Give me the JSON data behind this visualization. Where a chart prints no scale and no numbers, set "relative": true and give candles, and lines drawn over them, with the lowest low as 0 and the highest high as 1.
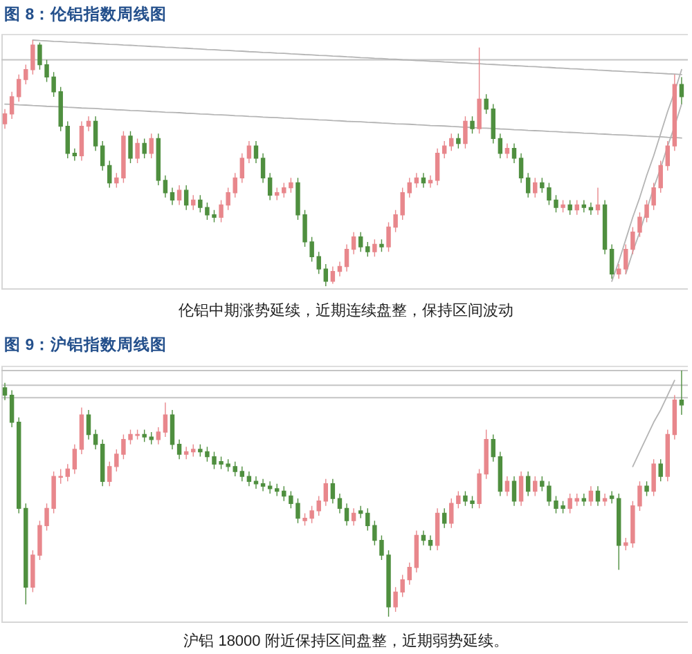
{
  "chart_data": [
    {
      "type": "candlestick",
      "title": "图 8：伦铝指数周线图",
      "annotations": [
        "伦铝中期涨势延续，近期连续盘整，保持区间波动"
      ],
      "relative": true,
      "categories": [
        null,
        null,
        null,
        null,
        null,
        null,
        null,
        null,
        null,
        null,
        null,
        null,
        null,
        null,
        null,
        null,
        null,
        null,
        null,
        null,
        null,
        null,
        null,
        null,
        null,
        null,
        null,
        null,
        null,
        null,
        null,
        null,
        null,
        null,
        null,
        null,
        null,
        null,
        null,
        null,
        null,
        null,
        null,
        null,
        null,
        null,
        null,
        null,
        null,
        null,
        null,
        null,
        null,
        null,
        null,
        null,
        null,
        null,
        null,
        null,
        null,
        null,
        null,
        null,
        null,
        null,
        null,
        null,
        null,
        null,
        null,
        null,
        null,
        null,
        null,
        null,
        null,
        null,
        null,
        null,
        null,
        null,
        null,
        null,
        null,
        null,
        null,
        null,
        null,
        null,
        null,
        null,
        null,
        null,
        null,
        null,
        null,
        null
      ],
      "ohlc": [
        [
          0.66,
          0.72,
          0.64,
          0.7
        ],
        [
          0.7,
          0.79,
          0.68,
          0.77
        ],
        [
          0.77,
          0.86,
          0.75,
          0.84
        ],
        [
          0.84,
          0.9,
          0.82,
          0.88
        ],
        [
          0.88,
          1.0,
          0.86,
          0.98
        ],
        [
          0.98,
          0.99,
          0.88,
          0.9
        ],
        [
          0.9,
          0.92,
          0.83,
          0.85
        ],
        [
          0.85,
          0.87,
          0.77,
          0.79
        ],
        [
          0.79,
          0.81,
          0.63,
          0.65
        ],
        [
          0.65,
          0.67,
          0.52,
          0.54
        ],
        [
          0.54,
          0.56,
          0.51,
          0.53
        ],
        [
          0.53,
          0.67,
          0.51,
          0.65
        ],
        [
          0.65,
          0.69,
          0.63,
          0.67
        ],
        [
          0.67,
          0.69,
          0.55,
          0.57
        ],
        [
          0.57,
          0.59,
          0.47,
          0.49
        ],
        [
          0.49,
          0.51,
          0.4,
          0.42
        ],
        [
          0.42,
          0.46,
          0.4,
          0.44
        ],
        [
          0.44,
          0.63,
          0.42,
          0.61
        ],
        [
          0.61,
          0.63,
          0.5,
          0.52
        ],
        [
          0.52,
          0.6,
          0.5,
          0.58
        ],
        [
          0.58,
          0.6,
          0.52,
          0.54
        ],
        [
          0.54,
          0.62,
          0.52,
          0.6
        ],
        [
          0.6,
          0.62,
          0.41,
          0.43
        ],
        [
          0.43,
          0.45,
          0.36,
          0.38
        ],
        [
          0.38,
          0.4,
          0.33,
          0.35
        ],
        [
          0.35,
          0.41,
          0.33,
          0.39
        ],
        [
          0.39,
          0.41,
          0.31,
          0.33
        ],
        [
          0.33,
          0.37,
          0.31,
          0.35
        ],
        [
          0.35,
          0.37,
          0.3,
          0.32
        ],
        [
          0.32,
          0.34,
          0.27,
          0.29
        ],
        [
          0.29,
          0.31,
          0.26,
          0.28
        ],
        [
          0.28,
          0.35,
          0.26,
          0.33
        ],
        [
          0.33,
          0.4,
          0.31,
          0.38
        ],
        [
          0.38,
          0.46,
          0.36,
          0.44
        ],
        [
          0.44,
          0.54,
          0.42,
          0.52
        ],
        [
          0.52,
          0.59,
          0.5,
          0.57
        ],
        [
          0.57,
          0.59,
          0.5,
          0.52
        ],
        [
          0.52,
          0.54,
          0.42,
          0.44
        ],
        [
          0.44,
          0.46,
          0.35,
          0.37
        ],
        [
          0.37,
          0.4,
          0.35,
          0.38
        ],
        [
          0.38,
          0.42,
          0.36,
          0.4
        ],
        [
          0.4,
          0.44,
          0.38,
          0.42
        ],
        [
          0.42,
          0.44,
          0.27,
          0.29
        ],
        [
          0.29,
          0.31,
          0.16,
          0.18
        ],
        [
          0.18,
          0.2,
          0.1,
          0.12
        ],
        [
          0.12,
          0.14,
          0.05,
          0.07
        ],
        [
          0.07,
          0.09,
          0.0,
          0.02
        ],
        [
          0.02,
          0.08,
          0.01,
          0.06
        ],
        [
          0.06,
          0.1,
          0.04,
          0.08
        ],
        [
          0.08,
          0.17,
          0.06,
          0.15
        ],
        [
          0.15,
          0.22,
          0.13,
          0.2
        ],
        [
          0.2,
          0.22,
          0.14,
          0.16
        ],
        [
          0.16,
          0.18,
          0.12,
          0.14
        ],
        [
          0.14,
          0.19,
          0.12,
          0.17
        ],
        [
          0.17,
          0.19,
          0.14,
          0.16
        ],
        [
          0.16,
          0.26,
          0.14,
          0.24
        ],
        [
          0.24,
          0.31,
          0.22,
          0.29
        ],
        [
          0.29,
          0.4,
          0.27,
          0.38
        ],
        [
          0.38,
          0.44,
          0.36,
          0.42
        ],
        [
          0.42,
          0.46,
          0.4,
          0.44
        ],
        [
          0.44,
          0.46,
          0.4,
          0.42
        ],
        [
          0.42,
          0.45,
          0.4,
          0.43
        ],
        [
          0.43,
          0.56,
          0.41,
          0.54
        ],
        [
          0.54,
          0.59,
          0.52,
          0.57
        ],
        [
          0.57,
          0.62,
          0.55,
          0.6
        ],
        [
          0.6,
          0.62,
          0.56,
          0.58
        ],
        [
          0.58,
          0.69,
          0.56,
          0.67
        ],
        [
          0.67,
          0.69,
          0.62,
          0.64
        ],
        [
          0.64,
          0.97,
          0.62,
          0.76
        ],
        [
          0.76,
          0.78,
          0.7,
          0.72
        ],
        [
          0.72,
          0.74,
          0.58,
          0.6
        ],
        [
          0.6,
          0.62,
          0.52,
          0.54
        ],
        [
          0.54,
          0.58,
          0.52,
          0.56
        ],
        [
          0.56,
          0.58,
          0.5,
          0.52
        ],
        [
          0.52,
          0.54,
          0.42,
          0.44
        ],
        [
          0.44,
          0.46,
          0.36,
          0.38
        ],
        [
          0.38,
          0.44,
          0.36,
          0.42
        ],
        [
          0.42,
          0.44,
          0.38,
          0.4
        ],
        [
          0.4,
          0.42,
          0.33,
          0.35
        ],
        [
          0.35,
          0.37,
          0.3,
          0.32
        ],
        [
          0.32,
          0.35,
          0.3,
          0.33
        ],
        [
          0.33,
          0.35,
          0.29,
          0.31
        ],
        [
          0.31,
          0.35,
          0.29,
          0.33
        ],
        [
          0.33,
          0.35,
          0.3,
          0.32
        ],
        [
          0.32,
          0.34,
          0.29,
          0.31
        ],
        [
          0.31,
          0.4,
          0.29,
          0.33
        ],
        [
          0.33,
          0.35,
          0.13,
          0.15
        ],
        [
          0.15,
          0.17,
          0.03,
          0.05
        ],
        [
          0.05,
          0.09,
          0.03,
          0.07
        ],
        [
          0.07,
          0.17,
          0.05,
          0.15
        ],
        [
          0.15,
          0.24,
          0.13,
          0.22
        ],
        [
          0.22,
          0.3,
          0.2,
          0.28
        ],
        [
          0.28,
          0.35,
          0.26,
          0.33
        ],
        [
          0.33,
          0.42,
          0.31,
          0.4
        ],
        [
          0.4,
          0.51,
          0.38,
          0.49
        ],
        [
          0.49,
          0.59,
          0.47,
          0.57
        ],
        [
          0.57,
          0.86,
          0.55,
          0.82
        ],
        [
          0.82,
          0.85,
          0.74,
          0.77
        ]
      ],
      "colors": [
        "#e8878c",
        "#e8878c",
        "#e8878c",
        "#e8878c",
        "#e8878c",
        "#4f8f3f",
        "#4f8f3f",
        "#4f8f3f",
        "#4f8f3f",
        "#4f8f3f",
        "#4f8f3f",
        "#e8878c",
        "#e8878c",
        "#4f8f3f",
        "#4f8f3f",
        "#4f8f3f",
        "#e8878c",
        "#e8878c",
        "#4f8f3f",
        "#e8878c",
        "#4f8f3f",
        "#e8878c",
        "#4f8f3f",
        "#4f8f3f",
        "#4f8f3f",
        "#e8878c",
        "#4f8f3f",
        "#e8878c",
        "#4f8f3f",
        "#4f8f3f",
        "#4f8f3f",
        "#e8878c",
        "#e8878c",
        "#e8878c",
        "#e8878c",
        "#e8878c",
        "#4f8f3f",
        "#4f8f3f",
        "#4f8f3f",
        "#e8878c",
        "#e8878c",
        "#e8878c",
        "#4f8f3f",
        "#4f8f3f",
        "#4f8f3f",
        "#4f8f3f",
        "#4f8f3f",
        "#e8878c",
        "#e8878c",
        "#e8878c",
        "#e8878c",
        "#4f8f3f",
        "#4f8f3f",
        "#e8878c",
        "#4f8f3f",
        "#e8878c",
        "#e8878c",
        "#e8878c",
        "#e8878c",
        "#e8878c",
        "#4f8f3f",
        "#e8878c",
        "#e8878c",
        "#e8878c",
        "#e8878c",
        "#4f8f3f",
        "#e8878c",
        "#4f8f3f",
        "#e8878c",
        "#4f8f3f",
        "#4f8f3f",
        "#4f8f3f",
        "#e8878c",
        "#4f8f3f",
        "#4f8f3f",
        "#4f8f3f",
        "#e8878c",
        "#4f8f3f",
        "#4f8f3f",
        "#4f8f3f",
        "#e8878c",
        "#4f8f3f",
        "#e8878c",
        "#4f8f3f",
        "#4f8f3f",
        "#e8878c",
        "#4f8f3f",
        "#4f8f3f",
        "#e8878c",
        "#e8878c",
        "#e8878c",
        "#e8878c",
        "#e8878c",
        "#e8878c",
        "#e8878c",
        "#e8878c",
        "#e8878c",
        "#4f8f3f"
      ],
      "ref_lines": [
        {
          "axis": "y",
          "value": 0.92,
          "color": "#c4c4c4"
        }
      ],
      "series": [
        {
          "type": "line",
          "color": "#b4b4b4",
          "values": [
            null,
            null,
            null,
            null,
            1.0,
            0.998,
            0.997,
            0.995,
            0.994,
            0.992,
            0.991,
            0.989,
            0.988,
            0.986,
            0.985,
            0.983,
            0.982,
            0.98,
            0.979,
            0.977,
            0.976,
            0.974,
            0.973,
            0.971,
            0.97,
            0.968,
            0.967,
            0.965,
            0.964,
            0.962,
            0.961,
            0.959,
            0.958,
            0.956,
            0.955,
            0.953,
            0.952,
            0.95,
            0.949,
            0.947,
            0.946,
            0.944,
            0.943,
            0.941,
            0.94,
            0.938,
            0.937,
            0.935,
            0.934,
            0.932,
            0.931,
            0.929,
            0.928,
            0.926,
            0.925,
            0.923,
            0.922,
            0.92,
            0.919,
            0.917,
            0.916,
            0.914,
            0.913,
            0.911,
            0.91,
            0.908,
            0.907,
            0.905,
            0.904,
            0.902,
            0.901,
            0.899,
            0.898,
            0.896,
            0.895,
            0.893,
            0.892,
            0.89,
            0.889,
            0.887,
            0.886,
            0.884,
            0.883,
            0.881,
            0.88,
            0.878,
            0.877,
            0.875,
            0.874,
            0.872,
            0.871,
            0.869,
            0.868,
            0.866,
            0.865,
            0.863,
            0.862,
            0.86
          ]
        },
        {
          "type": "line",
          "color": "#b4b4b4",
          "values": [
            0.74,
            0.739,
            0.737,
            0.736,
            0.734,
            0.733,
            0.731,
            0.73,
            0.729,
            0.727,
            0.726,
            0.724,
            0.723,
            0.722,
            0.72,
            0.719,
            0.717,
            0.716,
            0.714,
            0.713,
            0.712,
            0.71,
            0.709,
            0.707,
            0.706,
            0.705,
            0.703,
            0.702,
            0.7,
            0.699,
            0.697,
            0.696,
            0.695,
            0.693,
            0.692,
            0.69,
            0.689,
            0.687,
            0.686,
            0.685,
            0.683,
            0.682,
            0.68,
            0.679,
            0.678,
            0.676,
            0.675,
            0.673,
            0.672,
            0.67,
            0.669,
            0.668,
            0.666,
            0.665,
            0.663,
            0.662,
            0.66,
            0.659,
            0.658,
            0.656,
            0.655,
            0.653,
            0.652,
            0.651,
            0.649,
            0.648,
            0.646,
            0.645,
            0.643,
            0.642,
            0.641,
            0.639,
            0.638,
            0.636,
            0.635,
            0.633,
            0.632,
            0.631,
            0.629,
            0.628,
            0.626,
            0.625,
            0.624,
            0.622,
            0.621,
            0.619,
            0.618,
            0.616,
            0.615,
            0.614,
            0.612,
            0.611,
            0.609,
            0.608,
            0.607,
            0.605,
            0.604,
            0.602
          ]
        },
        {
          "type": "line",
          "color": "#b4b4b4",
          "values": [
            null,
            null,
            null,
            null,
            null,
            null,
            null,
            null,
            null,
            null,
            null,
            null,
            null,
            null,
            null,
            null,
            null,
            null,
            null,
            null,
            null,
            null,
            null,
            null,
            null,
            null,
            null,
            null,
            null,
            null,
            null,
            null,
            null,
            null,
            null,
            null,
            null,
            null,
            null,
            null,
            null,
            null,
            null,
            null,
            null,
            null,
            null,
            null,
            null,
            null,
            null,
            null,
            null,
            null,
            null,
            null,
            null,
            null,
            null,
            null,
            null,
            null,
            null,
            null,
            null,
            null,
            null,
            null,
            null,
            null,
            null,
            null,
            null,
            null,
            null,
            null,
            null,
            null,
            null,
            null,
            null,
            null,
            null,
            null,
            null,
            null,
            null,
            0.02,
            0.1,
            0.19,
            0.28,
            0.36,
            0.45,
            0.53,
            0.62,
            0.71,
            0.79,
            0.88
          ]
        },
        {
          "type": "line",
          "color": "#b4b4b4",
          "values": [
            null,
            null,
            null,
            null,
            null,
            null,
            null,
            null,
            null,
            null,
            null,
            null,
            null,
            null,
            null,
            null,
            null,
            null,
            null,
            null,
            null,
            null,
            null,
            null,
            null,
            null,
            null,
            null,
            null,
            null,
            null,
            null,
            null,
            null,
            null,
            null,
            null,
            null,
            null,
            null,
            null,
            null,
            null,
            null,
            null,
            null,
            null,
            null,
            null,
            null,
            null,
            null,
            null,
            null,
            null,
            null,
            null,
            null,
            null,
            null,
            null,
            null,
            null,
            null,
            null,
            null,
            null,
            null,
            null,
            null,
            null,
            null,
            null,
            null,
            null,
            null,
            null,
            null,
            null,
            null,
            null,
            null,
            null,
            null,
            null,
            null,
            null,
            null,
            null,
            0.05,
            0.14,
            0.22,
            0.31,
            0.4,
            0.48,
            0.57,
            0.65,
            0.74
          ]
        }
      ]
    },
    {
      "type": "candlestick",
      "title": "图 9：沪铝指数周线图",
      "annotations": [
        "沪铝 18000 附近保持区间盘整，近期弱势延续。"
      ],
      "relative": true,
      "categories": [
        null,
        null,
        null,
        null,
        null,
        null,
        null,
        null,
        null,
        null,
        null,
        null,
        null,
        null,
        null,
        null,
        null,
        null,
        null,
        null,
        null,
        null,
        null,
        null,
        null,
        null,
        null,
        null,
        null,
        null,
        null,
        null,
        null,
        null,
        null,
        null,
        null,
        null,
        null,
        null,
        null,
        null,
        null,
        null,
        null,
        null,
        null,
        null,
        null,
        null,
        null,
        null,
        null,
        null,
        null,
        null,
        null,
        null,
        null,
        null,
        null,
        null,
        null,
        null,
        null,
        null,
        null,
        null,
        null,
        null,
        null,
        null,
        null,
        null,
        null,
        null,
        null,
        null,
        null,
        null,
        null,
        null,
        null,
        null,
        null,
        null,
        null,
        null,
        null,
        null,
        null,
        null,
        null,
        null,
        null,
        null,
        null,
        null
      ],
      "ohlc": [
        [
          0.93,
          0.95,
          0.88,
          0.9
        ],
        [
          0.9,
          0.92,
          0.77,
          0.79
        ],
        [
          0.79,
          0.81,
          0.42,
          0.44
        ],
        [
          0.44,
          0.46,
          0.05,
          0.12
        ],
        [
          0.12,
          0.27,
          0.1,
          0.25
        ],
        [
          0.25,
          0.39,
          0.23,
          0.37
        ],
        [
          0.37,
          0.46,
          0.35,
          0.44
        ],
        [
          0.44,
          0.59,
          0.42,
          0.57
        ],
        [
          0.57,
          0.6,
          0.54,
          0.57
        ],
        [
          0.57,
          0.62,
          0.55,
          0.6
        ],
        [
          0.6,
          0.7,
          0.58,
          0.68
        ],
        [
          0.68,
          0.85,
          0.66,
          0.82
        ],
        [
          0.82,
          0.84,
          0.72,
          0.74
        ],
        [
          0.74,
          0.76,
          0.68,
          0.7
        ],
        [
          0.7,
          0.72,
          0.53,
          0.55
        ],
        [
          0.55,
          0.63,
          0.53,
          0.61
        ],
        [
          0.61,
          0.68,
          0.59,
          0.66
        ],
        [
          0.66,
          0.74,
          0.64,
          0.72
        ],
        [
          0.72,
          0.76,
          0.7,
          0.74
        ],
        [
          0.74,
          0.76,
          0.72,
          0.74
        ],
        [
          0.74,
          0.76,
          0.71,
          0.73
        ],
        [
          0.73,
          0.75,
          0.7,
          0.72
        ],
        [
          0.72,
          0.77,
          0.7,
          0.75
        ],
        [
          0.75,
          0.87,
          0.73,
          0.82
        ],
        [
          0.82,
          0.84,
          0.68,
          0.7
        ],
        [
          0.7,
          0.72,
          0.64,
          0.66
        ],
        [
          0.66,
          0.69,
          0.64,
          0.67
        ],
        [
          0.67,
          0.7,
          0.65,
          0.68
        ],
        [
          0.68,
          0.7,
          0.65,
          0.67
        ],
        [
          0.67,
          0.69,
          0.63,
          0.65
        ],
        [
          0.65,
          0.67,
          0.6,
          0.62
        ],
        [
          0.63,
          0.65,
          0.6,
          0.62
        ],
        [
          0.62,
          0.64,
          0.59,
          0.61
        ],
        [
          0.61,
          0.63,
          0.57,
          0.59
        ],
        [
          0.59,
          0.61,
          0.55,
          0.57
        ],
        [
          0.57,
          0.59,
          0.53,
          0.55
        ],
        [
          0.55,
          0.57,
          0.52,
          0.54
        ],
        [
          0.54,
          0.56,
          0.51,
          0.53
        ],
        [
          0.53,
          0.55,
          0.5,
          0.52
        ],
        [
          0.52,
          0.54,
          0.49,
          0.51
        ],
        [
          0.51,
          0.53,
          0.47,
          0.49
        ],
        [
          0.49,
          0.51,
          0.44,
          0.46
        ],
        [
          0.46,
          0.48,
          0.38,
          0.4
        ],
        [
          0.39,
          0.42,
          0.37,
          0.4
        ],
        [
          0.4,
          0.45,
          0.38,
          0.43
        ],
        [
          0.43,
          0.49,
          0.41,
          0.47
        ],
        [
          0.47,
          0.56,
          0.45,
          0.54
        ],
        [
          0.54,
          0.56,
          0.46,
          0.48
        ],
        [
          0.48,
          0.5,
          0.42,
          0.44
        ],
        [
          0.44,
          0.46,
          0.37,
          0.39
        ],
        [
          0.39,
          0.44,
          0.37,
          0.42
        ],
        [
          0.43,
          0.45,
          0.4,
          0.42
        ],
        [
          0.42,
          0.44,
          0.35,
          0.37
        ],
        [
          0.37,
          0.39,
          0.29,
          0.31
        ],
        [
          0.31,
          0.33,
          0.23,
          0.25
        ],
        [
          0.25,
          0.27,
          0.0,
          0.04
        ],
        [
          0.04,
          0.12,
          0.02,
          0.1
        ],
        [
          0.1,
          0.17,
          0.08,
          0.15
        ],
        [
          0.15,
          0.22,
          0.13,
          0.2
        ],
        [
          0.2,
          0.35,
          0.18,
          0.33
        ],
        [
          0.33,
          0.35,
          0.29,
          0.31
        ],
        [
          0.31,
          0.33,
          0.27,
          0.29
        ],
        [
          0.29,
          0.44,
          0.27,
          0.42
        ],
        [
          0.42,
          0.44,
          0.36,
          0.38
        ],
        [
          0.38,
          0.48,
          0.36,
          0.46
        ],
        [
          0.46,
          0.51,
          0.44,
          0.49
        ],
        [
          0.49,
          0.51,
          0.45,
          0.47
        ],
        [
          0.47,
          0.49,
          0.44,
          0.46
        ],
        [
          0.46,
          0.6,
          0.44,
          0.58
        ],
        [
          0.58,
          0.76,
          0.56,
          0.72
        ],
        [
          0.72,
          0.74,
          0.63,
          0.65
        ],
        [
          0.65,
          0.67,
          0.49,
          0.51
        ],
        [
          0.51,
          0.57,
          0.49,
          0.55
        ],
        [
          0.55,
          0.57,
          0.45,
          0.47
        ],
        [
          0.47,
          0.59,
          0.45,
          0.57
        ],
        [
          0.57,
          0.59,
          0.49,
          0.51
        ],
        [
          0.51,
          0.57,
          0.49,
          0.55
        ],
        [
          0.55,
          0.57,
          0.51,
          0.53
        ],
        [
          0.53,
          0.55,
          0.45,
          0.47
        ],
        [
          0.47,
          0.49,
          0.42,
          0.44
        ],
        [
          0.45,
          0.47,
          0.42,
          0.44
        ],
        [
          0.44,
          0.5,
          0.42,
          0.48
        ],
        [
          0.47,
          0.5,
          0.45,
          0.48
        ],
        [
          0.48,
          0.5,
          0.45,
          0.47
        ],
        [
          0.47,
          0.53,
          0.45,
          0.51
        ],
        [
          0.51,
          0.53,
          0.45,
          0.47
        ],
        [
          0.47,
          0.5,
          0.45,
          0.48
        ],
        [
          0.49,
          0.51,
          0.46,
          0.48
        ],
        [
          0.48,
          0.5,
          0.19,
          0.29
        ],
        [
          0.29,
          0.32,
          0.27,
          0.3
        ],
        [
          0.3,
          0.47,
          0.28,
          0.45
        ],
        [
          0.45,
          0.55,
          0.43,
          0.53
        ],
        [
          0.53,
          0.55,
          0.49,
          0.51
        ],
        [
          0.51,
          0.64,
          0.49,
          0.62
        ],
        [
          0.62,
          0.64,
          0.55,
          0.57
        ],
        [
          0.57,
          0.76,
          0.55,
          0.74
        ],
        [
          0.74,
          0.9,
          0.72,
          0.88
        ],
        [
          0.88,
          1.0,
          0.82,
          0.86
        ]
      ],
      "colors": [
        "#4f8f3f",
        "#4f8f3f",
        "#4f8f3f",
        "#4f8f3f",
        "#e8878c",
        "#e8878c",
        "#e8878c",
        "#e8878c",
        "#e8878c",
        "#e8878c",
        "#e8878c",
        "#e8878c",
        "#4f8f3f",
        "#4f8f3f",
        "#4f8f3f",
        "#e8878c",
        "#e8878c",
        "#e8878c",
        "#e8878c",
        "#e8878c",
        "#4f8f3f",
        "#4f8f3f",
        "#e8878c",
        "#e8878c",
        "#4f8f3f",
        "#4f8f3f",
        "#e8878c",
        "#e8878c",
        "#4f8f3f",
        "#4f8f3f",
        "#4f8f3f",
        "#4f8f3f",
        "#4f8f3f",
        "#4f8f3f",
        "#4f8f3f",
        "#4f8f3f",
        "#4f8f3f",
        "#4f8f3f",
        "#4f8f3f",
        "#4f8f3f",
        "#4f8f3f",
        "#4f8f3f",
        "#4f8f3f",
        "#e8878c",
        "#e8878c",
        "#e8878c",
        "#e8878c",
        "#4f8f3f",
        "#4f8f3f",
        "#4f8f3f",
        "#e8878c",
        "#4f8f3f",
        "#4f8f3f",
        "#4f8f3f",
        "#4f8f3f",
        "#4f8f3f",
        "#e8878c",
        "#e8878c",
        "#e8878c",
        "#e8878c",
        "#4f8f3f",
        "#4f8f3f",
        "#e8878c",
        "#4f8f3f",
        "#e8878c",
        "#e8878c",
        "#4f8f3f",
        "#4f8f3f",
        "#e8878c",
        "#e8878c",
        "#4f8f3f",
        "#4f8f3f",
        "#e8878c",
        "#4f8f3f",
        "#e8878c",
        "#4f8f3f",
        "#e8878c",
        "#4f8f3f",
        "#4f8f3f",
        "#4f8f3f",
        "#4f8f3f",
        "#e8878c",
        "#e8878c",
        "#4f8f3f",
        "#e8878c",
        "#4f8f3f",
        "#e8878c",
        "#4f8f3f",
        "#4f8f3f",
        "#e8878c",
        "#e8878c",
        "#e8878c",
        "#4f8f3f",
        "#e8878c",
        "#4f8f3f",
        "#e8878c",
        "#e8878c",
        "#4f8f3f"
      ],
      "ref_lines": [
        {
          "axis": "y",
          "value": 1.0,
          "color": "#c4c4c4"
        },
        {
          "axis": "y",
          "value": 0.94,
          "color": "#c4c4c4"
        },
        {
          "axis": "y",
          "value": 0.89,
          "color": "#c4c4c4"
        }
      ],
      "series": [
        {
          "type": "line",
          "color": "#b4b4b4",
          "values": [
            null,
            null,
            null,
            null,
            null,
            null,
            null,
            null,
            null,
            null,
            null,
            null,
            null,
            null,
            null,
            null,
            null,
            null,
            null,
            null,
            null,
            null,
            null,
            null,
            null,
            null,
            null,
            null,
            null,
            null,
            null,
            null,
            null,
            null,
            null,
            null,
            null,
            null,
            null,
            null,
            null,
            null,
            null,
            null,
            null,
            null,
            null,
            null,
            null,
            null,
            null,
            null,
            null,
            null,
            null,
            null,
            null,
            null,
            null,
            null,
            null,
            null,
            null,
            null,
            null,
            null,
            null,
            null,
            null,
            null,
            null,
            null,
            null,
            null,
            null,
            null,
            null,
            null,
            null,
            null,
            null,
            null,
            null,
            null,
            null,
            null,
            null,
            null,
            null,
            null,
            0.61,
            0.67,
            0.73,
            0.79,
            0.84,
            0.9,
            0.96,
            null
          ]
        }
      ]
    }
  ]
}
